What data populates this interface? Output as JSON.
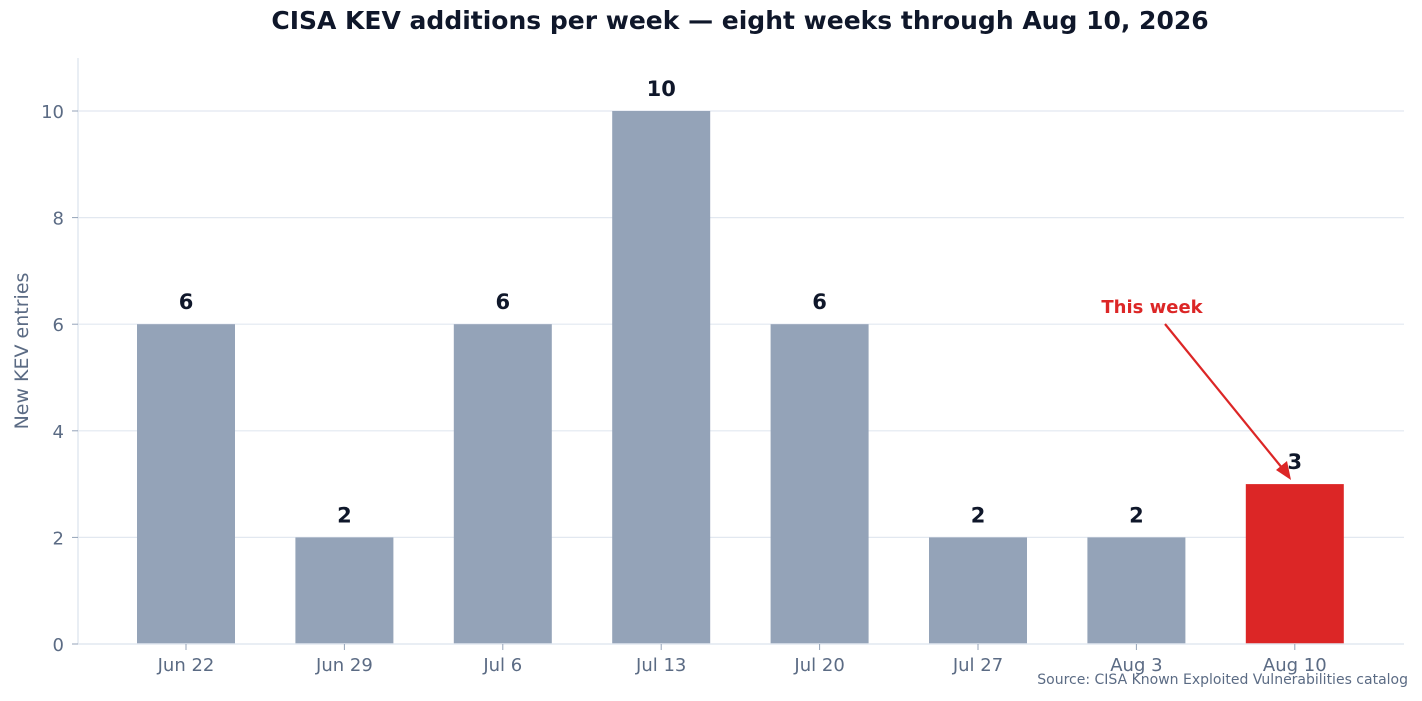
{
  "chart_data": {
    "type": "bar",
    "title": "CISA KEV additions per week — eight weeks through Aug 10, 2026",
    "xlabel": "",
    "ylabel": "New KEV entries",
    "categories": [
      "Jun 22",
      "Jun 29",
      "Jul 6",
      "Jul 13",
      "Jul 20",
      "Jul 27",
      "Aug 3",
      "Aug 10"
    ],
    "values": [
      6,
      2,
      6,
      10,
      6,
      2,
      2,
      3
    ],
    "ylim": [
      0,
      11
    ],
    "yticks": [
      0,
      2,
      4,
      6,
      8,
      10
    ],
    "grid": "horizontal",
    "highlight_index": 7,
    "annotation": {
      "text": "This week",
      "target": "Aug 10"
    },
    "source": "Source: CISA Known Exploited Vulnerabilities catalog",
    "colors": {
      "bar": "#94a3b8",
      "highlight": "#dc2626",
      "grid": "#e2e8f0",
      "axis": "#e2e8f0",
      "text": "#0f172a",
      "muted": "#5b6b84"
    }
  }
}
